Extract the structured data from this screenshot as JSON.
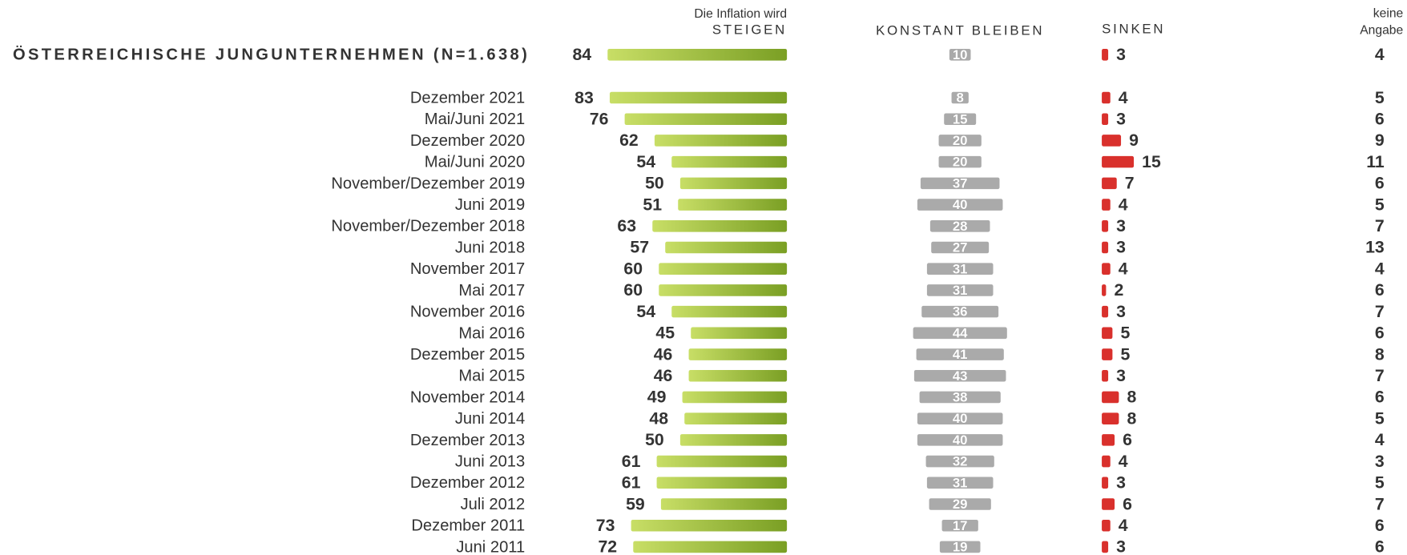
{
  "chart_data": {
    "type": "survey-bars",
    "subtitle": "Die Inflation wird",
    "total": {
      "label": "ÖSTERREICHISCHE JUNGUNTERNEHMEN (N=1.638)",
      "values": [
        84,
        10,
        3,
        4
      ]
    },
    "categories": [
      "Dezember 2021",
      "Mai/Juni 2021",
      "Dezember 2020",
      "Mai/Juni 2020",
      "November/Dezember 2019",
      "Juni 2019",
      "November/Dezember 2018",
      "Juni 2018",
      "November 2017",
      "Mai 2017",
      "November 2016",
      "Mai 2016",
      "Dezember 2015",
      "Mai 2015",
      "November 2014",
      "Juni 2014",
      "Dezember 2013",
      "Juni 2013",
      "Dezember 2012",
      "Juli 2012",
      "Dezember 2011",
      "Juni 2011"
    ],
    "series": [
      {
        "name": "STEIGEN",
        "color": "#8aad2e",
        "align": "right",
        "values": [
          83,
          76,
          62,
          54,
          50,
          51,
          63,
          57,
          60,
          60,
          54,
          45,
          46,
          46,
          49,
          48,
          50,
          61,
          61,
          59,
          73,
          72
        ]
      },
      {
        "name": "KONSTANT BLEIBEN",
        "color": "#aaaaaa",
        "align": "center",
        "values": [
          8,
          15,
          20,
          20,
          37,
          40,
          28,
          27,
          31,
          31,
          36,
          44,
          41,
          43,
          38,
          40,
          40,
          32,
          31,
          29,
          17,
          19
        ]
      },
      {
        "name": "SINKEN",
        "color": "#d9302c",
        "align": "left",
        "values": [
          4,
          3,
          9,
          15,
          7,
          4,
          3,
          3,
          4,
          2,
          3,
          5,
          5,
          3,
          8,
          8,
          6,
          4,
          3,
          6,
          4,
          3
        ]
      },
      {
        "name": "keine Angabe",
        "align": "text",
        "values": [
          5,
          6,
          9,
          11,
          6,
          5,
          7,
          13,
          4,
          6,
          7,
          6,
          8,
          7,
          6,
          5,
          4,
          3,
          5,
          7,
          6,
          6
        ]
      }
    ]
  }
}
